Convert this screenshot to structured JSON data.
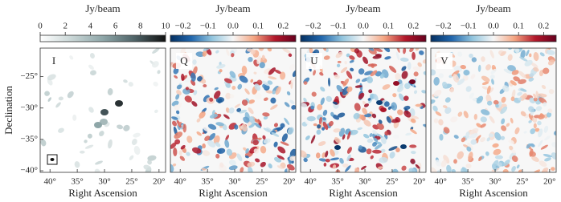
{
  "chart_data": [
    {
      "type": "image",
      "panel_label": "I",
      "xlabel": "Right Ascension",
      "ylabel": "Declination",
      "xlim": [
        41.8,
        18.8
      ],
      "xticks": [
        {
          "value": 40,
          "label": "40°"
        },
        {
          "value": 35,
          "label": "35°"
        },
        {
          "value": 30,
          "label": "30°"
        },
        {
          "value": 25,
          "label": "25°"
        },
        {
          "value": 20,
          "label": "20°"
        }
      ],
      "ylim": [
        -40.25,
        -20.45
      ],
      "yticks": [
        {
          "value": -25,
          "label": "−25°"
        },
        {
          "value": -30,
          "label": "−30°"
        },
        {
          "value": -35,
          "label": "−35°"
        },
        {
          "value": -40,
          "label": "−40°"
        }
      ],
      "colorbar": {
        "label": "Jy/beam",
        "lim": [
          0,
          10
        ],
        "ticks": [
          0,
          2,
          4,
          6,
          8,
          10
        ],
        "colormap": [
          "#ffffff",
          "#c9d6d6",
          "#8ea6a8",
          "#4f6468",
          "#111111"
        ]
      }
    },
    {
      "type": "image",
      "panel_label": "Q",
      "xlabel": "Right Ascension",
      "xlim": [
        41.8,
        18.8
      ],
      "xticks": [
        {
          "value": 40,
          "label": "40°"
        },
        {
          "value": 35,
          "label": "35°"
        },
        {
          "value": 30,
          "label": "30°"
        },
        {
          "value": 25,
          "label": "25°"
        },
        {
          "value": 20,
          "label": "20°"
        }
      ],
      "ylim": [
        -40.25,
        -20.45
      ],
      "colorbar": {
        "label": "Jy/beam",
        "lim": [
          -0.25,
          0.25
        ],
        "ticks": [
          {
            "value": -0.2,
            "label": "−0.2"
          },
          {
            "value": -0.1,
            "label": "−0.1"
          },
          {
            "value": 0,
            "label": "0.0"
          },
          0.1,
          0.2
        ],
        "colormap": [
          "#053061",
          "#2166ac",
          "#92c5de",
          "#f7f7f7",
          "#f4a582",
          "#b2182b",
          "#67001f"
        ]
      }
    },
    {
      "type": "image",
      "panel_label": "U",
      "xlabel": "Right Ascension",
      "xlim": [
        41.8,
        18.8
      ],
      "xticks": [
        {
          "value": 40,
          "label": "40°"
        },
        {
          "value": 35,
          "label": "35°"
        },
        {
          "value": 30,
          "label": "30°"
        },
        {
          "value": 25,
          "label": "25°"
        },
        {
          "value": 20,
          "label": "20°"
        }
      ],
      "ylim": [
        -40.25,
        -20.45
      ],
      "colorbar": {
        "label": "Jy/beam",
        "lim": [
          -0.25,
          0.25
        ],
        "ticks": [
          {
            "value": -0.2,
            "label": "−0.2"
          },
          {
            "value": -0.1,
            "label": "−0.1"
          },
          {
            "value": 0,
            "label": "0.0"
          },
          0.1,
          0.2
        ],
        "colormap": [
          "#053061",
          "#2166ac",
          "#92c5de",
          "#f7f7f7",
          "#f4a582",
          "#b2182b",
          "#67001f"
        ]
      }
    },
    {
      "type": "image",
      "panel_label": "V",
      "xlabel": "Right Ascension",
      "xlim": [
        41.8,
        18.8
      ],
      "xticks": [
        {
          "value": 40,
          "label": "40°"
        },
        {
          "value": 35,
          "label": "35°"
        },
        {
          "value": 30,
          "label": "30°"
        },
        {
          "value": 25,
          "label": "25°"
        },
        {
          "value": 20,
          "label": "20°"
        }
      ],
      "ylim": [
        -40.25,
        -20.45
      ],
      "colorbar": {
        "label": "Jy/beam",
        "lim": [
          -0.25,
          0.25
        ],
        "ticks": [
          {
            "value": -0.2,
            "label": "−0.2"
          },
          {
            "value": -0.1,
            "label": "−0.1"
          },
          {
            "value": 0,
            "label": "0.0"
          },
          0.1,
          0.2
        ],
        "colormap": [
          "#053061",
          "#2166ac",
          "#92c5de",
          "#f7f7f7",
          "#f4a582",
          "#b2182b",
          "#67001f"
        ]
      }
    }
  ]
}
